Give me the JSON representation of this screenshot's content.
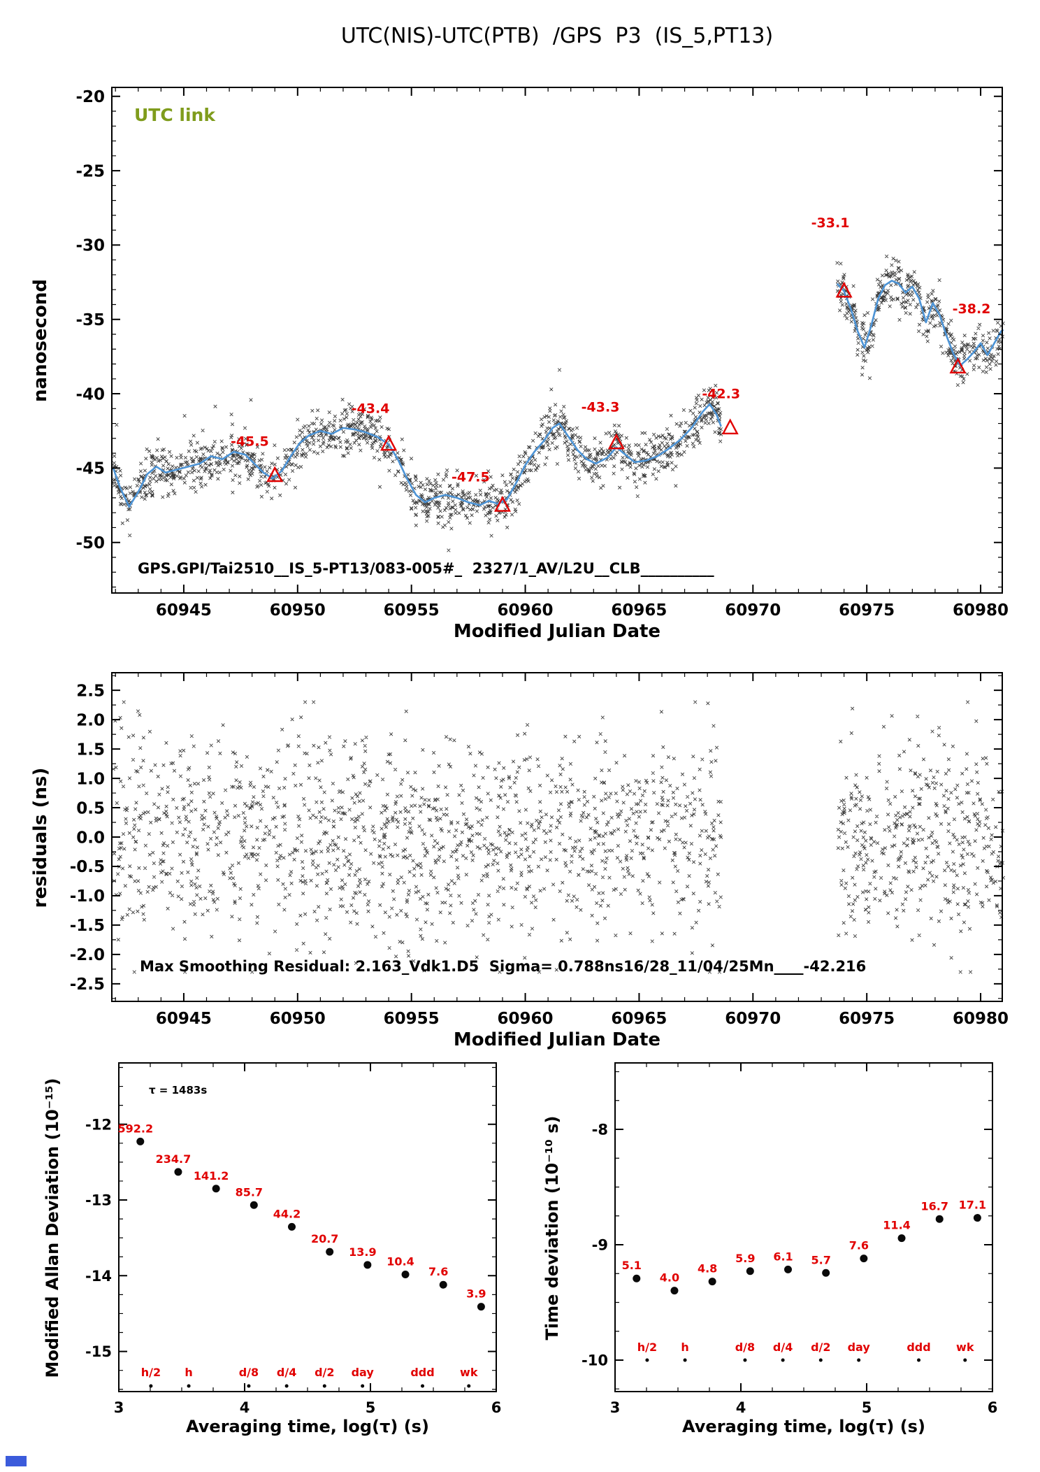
{
  "colors": {
    "scatter": "#0a0a0a",
    "smooth_line": "#4d94d6",
    "red": "#e10000",
    "olive": "#7f9c1c",
    "corner_square": "#3b5bdb",
    "axis": "#000000"
  },
  "chart_data": [
    {
      "id": "utc-link-plot",
      "type": "scatter",
      "title": "UTC(NIS)-UTC(PTB)  /GPS  P3  (IS_5,PT13)",
      "xlabel": "Modified Julian Date",
      "ylabel": "nanosecond",
      "link_label": "UTC link",
      "footer": "GPS.GPI/Tai2510__IS_5-PT13/083-005#_  2327/1_AV/L2U__CLB__________",
      "xlim": [
        60941.84,
        60980.95
      ],
      "ylim": [
        -53.4,
        -19.4
      ],
      "xticks": [
        [
          60945,
          "60945"
        ],
        [
          60950,
          "60950"
        ],
        [
          60955,
          "60955"
        ],
        [
          60960,
          "60960"
        ],
        [
          60965,
          "60965"
        ],
        [
          60970,
          "60970"
        ],
        [
          60975,
          "60975"
        ],
        [
          60980,
          "60980"
        ]
      ],
      "yticks": [
        [
          -20,
          "-20"
        ],
        [
          -25,
          "-25"
        ],
        [
          -30,
          "-30"
        ],
        [
          -35,
          "-35"
        ],
        [
          -40,
          "-40"
        ],
        [
          -45,
          "-45"
        ],
        [
          -50,
          "-50"
        ]
      ],
      "smooth_segments": [
        [
          [
            60941.9,
            -45.0
          ],
          [
            60942.2,
            -46.3
          ],
          [
            60942.6,
            -47.6
          ],
          [
            60943.0,
            -46.6
          ],
          [
            60943.4,
            -45.4
          ],
          [
            60943.8,
            -44.9
          ],
          [
            60944.2,
            -45.3
          ],
          [
            60944.7,
            -45.1
          ],
          [
            60945.2,
            -44.9
          ],
          [
            60945.7,
            -44.7
          ],
          [
            60946.2,
            -44.2
          ],
          [
            60946.7,
            -44.4
          ],
          [
            60947.2,
            -43.9
          ],
          [
            60947.7,
            -44.1
          ],
          [
            60948.1,
            -44.7
          ],
          [
            60948.5,
            -45.3
          ],
          [
            60948.9,
            -45.7
          ],
          [
            60949.3,
            -45.2
          ],
          [
            60949.7,
            -44.2
          ],
          [
            60950.1,
            -43.3
          ],
          [
            60950.5,
            -42.8
          ],
          [
            60951.0,
            -42.5
          ],
          [
            60951.5,
            -42.7
          ],
          [
            60952.0,
            -42.3
          ],
          [
            60952.5,
            -42.4
          ],
          [
            60953.0,
            -42.6
          ],
          [
            60953.5,
            -42.9
          ],
          [
            60954.0,
            -43.4
          ],
          [
            60954.4,
            -44.4
          ],
          [
            60954.8,
            -45.7
          ],
          [
            60955.2,
            -46.8
          ],
          [
            60955.6,
            -47.3
          ],
          [
            60956.0,
            -47.0
          ],
          [
            60956.5,
            -46.8
          ],
          [
            60957.0,
            -47.0
          ],
          [
            60957.5,
            -47.3
          ],
          [
            60958.0,
            -47.5
          ],
          [
            60958.4,
            -47.2
          ],
          [
            60958.8,
            -47.4
          ],
          [
            60959.2,
            -47.1
          ],
          [
            60959.6,
            -46.0
          ],
          [
            60960.0,
            -44.8
          ],
          [
            60960.4,
            -43.9
          ],
          [
            60960.8,
            -43.2
          ],
          [
            60961.2,
            -42.3
          ],
          [
            60961.5,
            -42.0
          ],
          [
            60961.9,
            -42.9
          ],
          [
            60962.3,
            -43.8
          ],
          [
            60962.7,
            -44.4
          ],
          [
            60963.1,
            -44.7
          ],
          [
            60963.6,
            -44.3
          ],
          [
            60964.0,
            -43.6
          ],
          [
            60964.4,
            -44.1
          ],
          [
            60964.8,
            -44.6
          ],
          [
            60965.3,
            -44.5
          ],
          [
            60965.8,
            -44.2
          ],
          [
            60966.3,
            -43.7
          ],
          [
            60966.8,
            -43.1
          ],
          [
            60967.3,
            -42.3
          ],
          [
            60967.8,
            -41.2
          ],
          [
            60968.1,
            -40.7
          ],
          [
            60968.4,
            -41.4
          ],
          [
            60968.6,
            -42.2
          ]
        ],
        [
          [
            60973.7,
            -32.6
          ],
          [
            60974.0,
            -33.1
          ],
          [
            60974.3,
            -34.3
          ],
          [
            60974.6,
            -35.8
          ],
          [
            60974.9,
            -36.9
          ],
          [
            60975.2,
            -35.4
          ],
          [
            60975.5,
            -33.6
          ],
          [
            60975.8,
            -32.7
          ],
          [
            60976.1,
            -32.4
          ],
          [
            60976.4,
            -32.6
          ],
          [
            60976.7,
            -33.2
          ],
          [
            60977.0,
            -32.8
          ],
          [
            60977.3,
            -33.6
          ],
          [
            60977.6,
            -35.2
          ],
          [
            60977.9,
            -33.9
          ],
          [
            60978.2,
            -34.7
          ],
          [
            60978.5,
            -36.1
          ],
          [
            60978.8,
            -37.3
          ],
          [
            60979.1,
            -38.1
          ],
          [
            60979.4,
            -37.7
          ],
          [
            60979.7,
            -37.2
          ],
          [
            60980.0,
            -36.6
          ],
          [
            60980.3,
            -37.4
          ],
          [
            60980.6,
            -36.6
          ],
          [
            60980.9,
            -35.8
          ],
          [
            60981.0,
            -35.7
          ]
        ]
      ],
      "scatter": {
        "sigma": 0.8,
        "seed": 12345,
        "segments": [
          {
            "t0": 60941.9,
            "t1": 60968.6,
            "n": 1450
          },
          {
            "t0": 60973.7,
            "t1": 60981.0,
            "n": 430
          }
        ]
      },
      "triangles": [
        {
          "x": 60949.0,
          "y": -45.5
        },
        {
          "x": 60954.0,
          "y": -43.4
        },
        {
          "x": 60959.0,
          "y": -47.5
        },
        {
          "x": 60964.0,
          "y": -43.3
        },
        {
          "x": 60969.0,
          "y": -42.3
        },
        {
          "x": 60974.0,
          "y": -33.1
        },
        {
          "x": 60979.0,
          "y": -38.2
        }
      ],
      "triangle_labels": [
        {
          "text": "-45.5",
          "x": 60947.9,
          "y": -43.5
        },
        {
          "text": "-43.4",
          "x": 60953.2,
          "y": -41.3
        },
        {
          "text": "-47.5",
          "x": 60957.6,
          "y": -45.9
        },
        {
          "text": "-43.3",
          "x": 60963.3,
          "y": -41.2
        },
        {
          "text": "-42.3",
          "x": 60968.6,
          "y": -40.3
        },
        {
          "text": "-33.1",
          "x": 60973.4,
          "y": -28.8
        },
        {
          "text": "-38.2",
          "x": 60979.6,
          "y": -34.6
        }
      ]
    },
    {
      "id": "residuals-plot",
      "type": "scatter",
      "xlabel": "Modified Julian Date",
      "ylabel": "residuals (ns)",
      "footer": "Max Smoothing Residual: 2.163_Vdk1.D5  Sigma= 0.788ns16/28_11/04/25Mn____-42.216",
      "xlim": [
        60941.84,
        60980.95
      ],
      "ylim": [
        -2.8,
        2.8
      ],
      "sigma_ns": 0.788,
      "xticks": [
        [
          60945,
          "60945"
        ],
        [
          60950,
          "60950"
        ],
        [
          60955,
          "60955"
        ],
        [
          60960,
          "60960"
        ],
        [
          60965,
          "60965"
        ],
        [
          60970,
          "60970"
        ],
        [
          60975,
          "60975"
        ],
        [
          60980,
          "60980"
        ]
      ],
      "yticks": [
        [
          2.5,
          "2.5"
        ],
        [
          2.0,
          "2.0"
        ],
        [
          1.5,
          "1.5"
        ],
        [
          1.0,
          "1.0"
        ],
        [
          0.5,
          "0.5"
        ],
        [
          0.0,
          "0.0"
        ],
        [
          -0.5,
          "-0.5"
        ],
        [
          -1.0,
          "-1.0"
        ],
        [
          -1.5,
          "-1.5"
        ],
        [
          -2.0,
          "-2.0"
        ],
        [
          -2.5,
          "-2.5"
        ]
      ],
      "scatter": {
        "sigma": 0.85,
        "clip": 2.3,
        "seed": 777,
        "segments": [
          {
            "t0": 60941.9,
            "t1": 60968.6,
            "n": 1450
          },
          {
            "t0": 60973.7,
            "t1": 60981.0,
            "n": 430
          }
        ]
      }
    },
    {
      "id": "mdev-plot",
      "type": "scatter",
      "xlabel": "Averaging time, log(τ) (s)",
      "ylabel": "Modified Allan Deviation (10⁻¹⁵)",
      "tau_note": "τ = 1483s",
      "xlim": [
        3,
        6
      ],
      "ylim": [
        -15.53,
        -11.19
      ],
      "log_offset": -15,
      "xticks": [
        [
          3,
          "3"
        ],
        [
          4,
          "4"
        ],
        [
          5,
          "5"
        ],
        [
          6,
          "6"
        ]
      ],
      "yticks": [
        [
          -12,
          "-12"
        ],
        [
          -13,
          "-13"
        ],
        [
          -14,
          "-14"
        ],
        [
          -15,
          "-15"
        ]
      ],
      "x": [
        3.171,
        3.472,
        3.773,
        4.074,
        4.375,
        4.676,
        4.977,
        5.278,
        5.579,
        5.88
      ],
      "values": [
        592.2,
        234.7,
        141.2,
        85.7,
        44.2,
        20.7,
        13.9,
        10.4,
        7.6,
        3.9
      ],
      "unit_labels": [
        {
          "t": "h/2",
          "x": 3.255
        },
        {
          "t": "h",
          "x": 3.556
        },
        {
          "t": "d/8",
          "x": 4.033
        },
        {
          "t": "d/4",
          "x": 4.334
        },
        {
          "t": "d/2",
          "x": 4.635
        },
        {
          "t": "day",
          "x": 4.937
        },
        {
          "t": "ddd",
          "x": 5.414
        },
        {
          "t": "wk",
          "x": 5.782
        }
      ]
    },
    {
      "id": "tdev-plot",
      "type": "scatter",
      "xlabel": "Averaging time, log(τ) (s)",
      "ylabel": "Time deviation (10⁻¹⁰ s)",
      "xlim": [
        3,
        6
      ],
      "ylim": [
        -10.273,
        -7.424
      ],
      "log_offset": -10,
      "xticks": [
        [
          3,
          "3"
        ],
        [
          4,
          "4"
        ],
        [
          5,
          "5"
        ],
        [
          6,
          "6"
        ]
      ],
      "yticks": [
        [
          -8,
          "-8"
        ],
        [
          -9,
          "-9"
        ],
        [
          -10,
          "-10"
        ]
      ],
      "x": [
        3.171,
        3.472,
        3.773,
        4.074,
        4.375,
        4.676,
        4.977,
        5.278,
        5.579,
        5.88
      ],
      "values": [
        5.1,
        4.0,
        4.8,
        5.9,
        6.1,
        5.7,
        7.6,
        11.4,
        16.7,
        17.1
      ],
      "unit_labels": [
        {
          "t": "h/2",
          "x": 3.255
        },
        {
          "t": "h",
          "x": 3.556
        },
        {
          "t": "d/8",
          "x": 4.033
        },
        {
          "t": "d/4",
          "x": 4.334
        },
        {
          "t": "d/2",
          "x": 4.635
        },
        {
          "t": "day",
          "x": 4.937
        },
        {
          "t": "ddd",
          "x": 5.414
        },
        {
          "t": "wk",
          "x": 5.782
        }
      ]
    }
  ]
}
